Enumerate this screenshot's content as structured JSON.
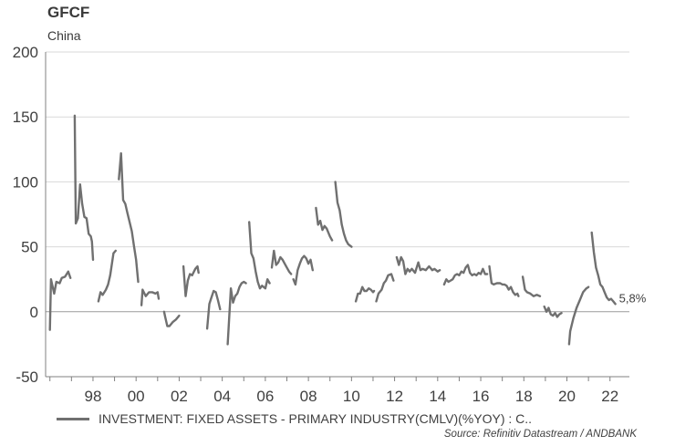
{
  "title": "GFCF",
  "subtitle": "China",
  "source": "Source: Refinitiv Datastream / ANDBANK",
  "colors": {
    "series": "#707070",
    "grid": "#d9d9d9",
    "axis": "#808080",
    "text": "#404040"
  },
  "chart_data": {
    "type": "line",
    "ylim": [
      -50,
      200
    ],
    "yticks": [
      -50,
      0,
      50,
      100,
      150,
      200
    ],
    "xlim": [
      1995.8,
      2022.9
    ],
    "xticks": [
      {
        "value": 1998,
        "label": "98"
      },
      {
        "value": 2000,
        "label": "00"
      },
      {
        "value": 2002,
        "label": "02"
      },
      {
        "value": 2004,
        "label": "04"
      },
      {
        "value": 2006,
        "label": "06"
      },
      {
        "value": 2008,
        "label": "08"
      },
      {
        "value": 2010,
        "label": "10"
      },
      {
        "value": 2012,
        "label": "12"
      },
      {
        "value": 2014,
        "label": "14"
      },
      {
        "value": 2016,
        "label": "16"
      },
      {
        "value": 2018,
        "label": "18"
      },
      {
        "value": 2020,
        "label": "20"
      },
      {
        "value": 2022,
        "label": "22"
      }
    ],
    "grid": true,
    "legend": "bottom",
    "series": [
      {
        "name": "INVESTMENT: FIXED ASSETS - PRIMARY INDUSTRY(CMLV)(%YOY) : C..",
        "last_label": "5,8%",
        "segments": [
          [
            [
              1996.0,
              -14
            ],
            [
              1996.05,
              25
            ],
            [
              1996.2,
              14
            ],
            [
              1996.3,
              23
            ],
            [
              1996.45,
              22
            ],
            [
              1996.55,
              26
            ],
            [
              1996.7,
              27
            ],
            [
              1996.85,
              31
            ],
            [
              1996.95,
              26
            ]
          ],
          [
            [
              1997.15,
              151
            ],
            [
              1997.2,
              68
            ],
            [
              1997.3,
              72
            ],
            [
              1997.4,
              98
            ],
            [
              1997.5,
              83
            ],
            [
              1997.6,
              73
            ],
            [
              1997.7,
              72
            ],
            [
              1997.8,
              60
            ],
            [
              1997.9,
              58
            ],
            [
              1997.95,
              54
            ],
            [
              1998.0,
              40
            ]
          ],
          [
            [
              1998.25,
              8
            ],
            [
              1998.35,
              15
            ],
            [
              1998.45,
              13
            ],
            [
              1998.6,
              17
            ],
            [
              1998.7,
              21
            ],
            [
              1998.8,
              28
            ],
            [
              1998.95,
              45
            ],
            [
              1999.05,
              47
            ]
          ],
          [
            [
              1999.2,
              102
            ],
            [
              1999.3,
              122
            ],
            [
              1999.4,
              86
            ],
            [
              1999.5,
              83
            ],
            [
              1999.6,
              76
            ],
            [
              1999.7,
              69
            ],
            [
              1999.8,
              62
            ],
            [
              1999.9,
              51
            ],
            [
              2000.0,
              40
            ],
            [
              2000.1,
              23
            ]
          ],
          [
            [
              2000.25,
              5
            ],
            [
              2000.3,
              17
            ],
            [
              2000.45,
              12
            ],
            [
              2000.6,
              15
            ],
            [
              2000.75,
              15
            ],
            [
              2000.9,
              14
            ],
            [
              2001.0,
              15
            ],
            [
              2001.05,
              10
            ]
          ],
          [
            [
              2001.3,
              0
            ],
            [
              2001.35,
              -4
            ],
            [
              2001.45,
              -11
            ],
            [
              2001.55,
              -11
            ],
            [
              2001.7,
              -8
            ],
            [
              2001.85,
              -6
            ],
            [
              2002.0,
              -3
            ]
          ],
          [
            [
              2002.2,
              35
            ],
            [
              2002.3,
              12
            ],
            [
              2002.4,
              24
            ],
            [
              2002.5,
              29
            ],
            [
              2002.6,
              28
            ],
            [
              2002.75,
              33
            ],
            [
              2002.85,
              35
            ],
            [
              2002.9,
              30
            ]
          ],
          [
            [
              2003.3,
              -13
            ],
            [
              2003.4,
              6
            ],
            [
              2003.5,
              11
            ],
            [
              2003.6,
              16
            ],
            [
              2003.7,
              15
            ],
            [
              2003.8,
              9
            ],
            [
              2003.9,
              2
            ]
          ],
          [
            [
              2004.25,
              -25
            ],
            [
              2004.4,
              18
            ],
            [
              2004.5,
              7
            ],
            [
              2004.6,
              12
            ],
            [
              2004.7,
              14
            ],
            [
              2004.8,
              19
            ],
            [
              2004.9,
              22
            ],
            [
              2005.0,
              23
            ],
            [
              2005.1,
              22
            ]
          ],
          [
            [
              2005.25,
              69
            ],
            [
              2005.35,
              45
            ],
            [
              2005.45,
              41
            ],
            [
              2005.55,
              31
            ],
            [
              2005.65,
              23
            ],
            [
              2005.75,
              18
            ],
            [
              2005.85,
              20
            ],
            [
              2006.0,
              18
            ],
            [
              2006.1,
              25
            ],
            [
              2006.2,
              22
            ]
          ],
          [
            [
              2006.3,
              34
            ],
            [
              2006.4,
              47
            ],
            [
              2006.5,
              36
            ],
            [
              2006.6,
              38
            ],
            [
              2006.7,
              42
            ],
            [
              2006.8,
              40
            ],
            [
              2006.9,
              37
            ],
            [
              2007.0,
              34
            ],
            [
              2007.1,
              31
            ],
            [
              2007.2,
              29
            ]
          ],
          [
            [
              2007.3,
              25
            ],
            [
              2007.4,
              21
            ],
            [
              2007.5,
              32
            ],
            [
              2007.6,
              37
            ],
            [
              2007.7,
              41
            ],
            [
              2007.8,
              43
            ],
            [
              2007.9,
              41
            ],
            [
              2008.0,
              37
            ],
            [
              2008.1,
              40
            ],
            [
              2008.2,
              32
            ]
          ],
          [
            [
              2008.35,
              80
            ],
            [
              2008.45,
              67
            ],
            [
              2008.55,
              70
            ],
            [
              2008.65,
              63
            ],
            [
              2008.75,
              66
            ],
            [
              2008.85,
              64
            ],
            [
              2009.0,
              58
            ],
            [
              2009.1,
              55
            ]
          ],
          [
            [
              2009.25,
              100
            ],
            [
              2009.35,
              84
            ],
            [
              2009.45,
              78
            ],
            [
              2009.55,
              67
            ],
            [
              2009.65,
              60
            ],
            [
              2009.75,
              55
            ],
            [
              2009.85,
              52
            ],
            [
              2010.0,
              50
            ]
          ],
          [
            [
              2010.2,
              8
            ],
            [
              2010.3,
              14
            ],
            [
              2010.4,
              14
            ],
            [
              2010.5,
              19
            ],
            [
              2010.6,
              16
            ],
            [
              2010.7,
              16
            ],
            [
              2010.8,
              18
            ],
            [
              2010.9,
              17
            ],
            [
              2011.0,
              15
            ],
            [
              2011.05,
              16
            ]
          ],
          [
            [
              2011.15,
              8
            ],
            [
              2011.25,
              14
            ],
            [
              2011.4,
              17
            ],
            [
              2011.5,
              22
            ],
            [
              2011.6,
              24
            ],
            [
              2011.7,
              28
            ],
            [
              2011.85,
              29
            ],
            [
              2011.95,
              24
            ]
          ],
          [
            [
              2012.1,
              42
            ],
            [
              2012.2,
              36
            ],
            [
              2012.3,
              42
            ],
            [
              2012.4,
              39
            ],
            [
              2012.5,
              29
            ],
            [
              2012.6,
              33
            ],
            [
              2012.7,
              31
            ],
            [
              2012.8,
              33
            ],
            [
              2012.95,
              30
            ],
            [
              2013.1,
              38
            ],
            [
              2013.2,
              32
            ],
            [
              2013.3,
              33
            ],
            [
              2013.45,
              32
            ],
            [
              2013.6,
              35
            ],
            [
              2013.75,
              32
            ],
            [
              2013.85,
              33
            ],
            [
              2014.0,
              31
            ],
            [
              2014.1,
              32
            ]
          ],
          [
            [
              2014.3,
              21
            ],
            [
              2014.4,
              25
            ],
            [
              2014.5,
              23
            ],
            [
              2014.6,
              24
            ],
            [
              2014.7,
              25
            ],
            [
              2014.8,
              28
            ],
            [
              2014.9,
              29
            ],
            [
              2015.0,
              28
            ],
            [
              2015.1,
              31
            ],
            [
              2015.2,
              30
            ],
            [
              2015.3,
              34
            ],
            [
              2015.4,
              36
            ],
            [
              2015.5,
              30
            ],
            [
              2015.6,
              28
            ],
            [
              2015.7,
              29
            ],
            [
              2015.8,
              28
            ],
            [
              2015.9,
              30
            ],
            [
              2016.0,
              29
            ],
            [
              2016.1,
              33
            ],
            [
              2016.2,
              29
            ],
            [
              2016.3,
              29
            ]
          ],
          [
            [
              2016.4,
              35
            ],
            [
              2016.5,
              22
            ],
            [
              2016.6,
              21
            ],
            [
              2016.75,
              22
            ],
            [
              2016.9,
              22
            ],
            [
              2017.0,
              21
            ],
            [
              2017.1,
              21
            ],
            [
              2017.2,
              20
            ],
            [
              2017.3,
              17
            ],
            [
              2017.4,
              19
            ],
            [
              2017.5,
              15
            ],
            [
              2017.6,
              13
            ],
            [
              2017.7,
              14
            ],
            [
              2017.75,
              12
            ]
          ],
          [
            [
              2017.95,
              27
            ],
            [
              2018.05,
              17
            ],
            [
              2018.15,
              15
            ],
            [
              2018.3,
              14
            ],
            [
              2018.45,
              12
            ],
            [
              2018.6,
              13
            ],
            [
              2018.75,
              12
            ]
          ],
          [
            [
              2018.95,
              4
            ],
            [
              2019.05,
              0
            ],
            [
              2019.15,
              3
            ],
            [
              2019.25,
              -2
            ],
            [
              2019.35,
              -3
            ],
            [
              2019.45,
              -1
            ],
            [
              2019.55,
              -4
            ],
            [
              2019.65,
              -2
            ],
            [
              2019.75,
              -1
            ]
          ],
          [
            [
              2020.1,
              -25
            ],
            [
              2020.15,
              -15
            ],
            [
              2020.3,
              -5
            ],
            [
              2020.45,
              3
            ],
            [
              2020.6,
              9
            ],
            [
              2020.75,
              15
            ],
            [
              2020.9,
              18
            ],
            [
              2021.0,
              19
            ]
          ],
          [
            [
              2021.15,
              61
            ],
            [
              2021.25,
              46
            ],
            [
              2021.35,
              34
            ],
            [
              2021.45,
              28
            ],
            [
              2021.55,
              21
            ],
            [
              2021.65,
              19
            ],
            [
              2021.75,
              15
            ],
            [
              2021.85,
              11
            ],
            [
              2021.95,
              9
            ],
            [
              2022.05,
              10
            ],
            [
              2022.15,
              8
            ],
            [
              2022.25,
              6
            ]
          ]
        ]
      }
    ]
  }
}
